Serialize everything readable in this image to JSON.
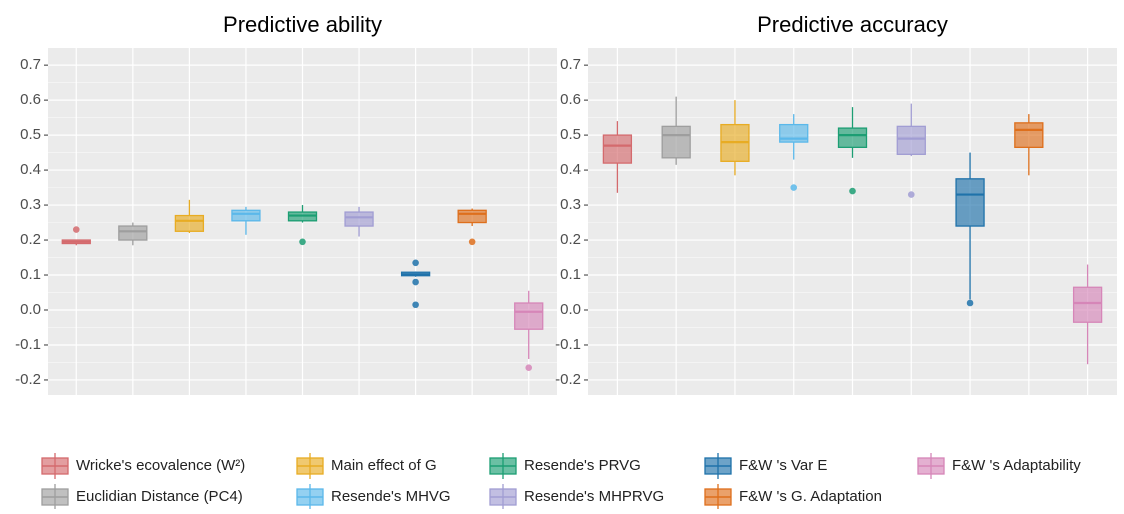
{
  "chart_data": [
    {
      "type": "box",
      "title": "Predictive ability",
      "ylim": [
        -0.243,
        0.749
      ],
      "yticks": [
        -0.2,
        -0.1,
        {
          "value": 0,
          "label": "0.0"
        },
        0.1,
        0.2,
        0.3,
        0.4,
        0.5,
        0.6,
        0.7
      ],
      "grid": true,
      "series": [
        {
          "name": "Wricke's ecovalence (W²)",
          "color": "#d46a6d",
          "low": 0.185,
          "q1": 0.19,
          "median": 0.195,
          "q3": 0.2,
          "high": 0.2,
          "outliers": [
            0.23
          ]
        },
        {
          "name": "Euclidian Distance (PC4)",
          "color": "#9e9e9e",
          "low": 0.185,
          "q1": 0.2,
          "median": 0.225,
          "q3": 0.24,
          "high": 0.25,
          "outliers": []
        },
        {
          "name": "Main effect of G",
          "color": "#e8ac23",
          "low": 0.22,
          "q1": 0.225,
          "median": 0.255,
          "q3": 0.27,
          "high": 0.315,
          "outliers": []
        },
        {
          "name": "Resende's MHVG",
          "color": "#5bb8ea",
          "low": 0.215,
          "q1": 0.255,
          "median": 0.275,
          "q3": 0.285,
          "high": 0.295,
          "outliers": []
        },
        {
          "name": "Resende's PRVG",
          "color": "#1c9e73",
          "low": 0.25,
          "q1": 0.255,
          "median": 0.27,
          "q3": 0.28,
          "high": 0.3,
          "outliers": [
            0.195
          ]
        },
        {
          "name": "Resende's MHPRVG",
          "color": "#a19dd3",
          "low": 0.21,
          "q1": 0.24,
          "median": 0.265,
          "q3": 0.28,
          "high": 0.295,
          "outliers": []
        },
        {
          "name": "F&W 's Var E",
          "color": "#1f72aa",
          "low": 0.095,
          "q1": 0.098,
          "median": 0.102,
          "q3": 0.108,
          "high": 0.11,
          "outliers": [
            0.135,
            0.08,
            0.015
          ]
        },
        {
          "name": "F&W 's G. Adaptation",
          "color": "#de6f1c",
          "low": 0.24,
          "q1": 0.25,
          "median": 0.275,
          "q3": 0.285,
          "high": 0.29,
          "outliers": [
            0.195
          ]
        },
        {
          "name": "F&W 's Adaptability",
          "color": "#d686b8",
          "low": -0.14,
          "q1": -0.055,
          "median": -0.005,
          "q3": 0.02,
          "high": 0.055,
          "outliers": [
            -0.165
          ]
        }
      ]
    },
    {
      "type": "box",
      "title": "Predictive accuracy",
      "ylim": [
        -0.243,
        0.749
      ],
      "yticks": [
        -0.2,
        -0.1,
        {
          "value": 0,
          "label": "0.0"
        },
        0.1,
        0.2,
        0.3,
        0.4,
        0.5,
        0.6,
        0.7
      ],
      "grid": true,
      "series": [
        {
          "low": 0.335,
          "q1": 0.42,
          "median": 0.47,
          "q3": 0.5,
          "high": 0.54,
          "outliers": []
        },
        {
          "low": 0.415,
          "q1": 0.435,
          "median": 0.5,
          "q3": 0.525,
          "high": 0.61,
          "outliers": []
        },
        {
          "low": 0.385,
          "q1": 0.425,
          "median": 0.48,
          "q3": 0.53,
          "high": 0.6,
          "outliers": []
        },
        {
          "low": 0.43,
          "q1": 0.48,
          "median": 0.49,
          "q3": 0.53,
          "high": 0.56,
          "outliers": [
            0.35
          ]
        },
        {
          "low": 0.435,
          "q1": 0.465,
          "median": 0.5,
          "q3": 0.52,
          "high": 0.58,
          "outliers": [
            0.34
          ]
        },
        {
          "low": 0.44,
          "q1": 0.445,
          "median": 0.49,
          "q3": 0.525,
          "high": 0.59,
          "outliers": [
            0.33
          ]
        },
        {
          "low": 0.03,
          "q1": 0.24,
          "median": 0.33,
          "q3": 0.375,
          "high": 0.45,
          "outliers": [
            0.02
          ]
        },
        {
          "low": 0.385,
          "q1": 0.465,
          "median": 0.515,
          "q3": 0.535,
          "high": 0.56,
          "outliers": []
        },
        {
          "low": -0.155,
          "q1": -0.035,
          "median": 0.02,
          "q3": 0.065,
          "high": 0.13,
          "outliers": []
        }
      ]
    }
  ]
}
